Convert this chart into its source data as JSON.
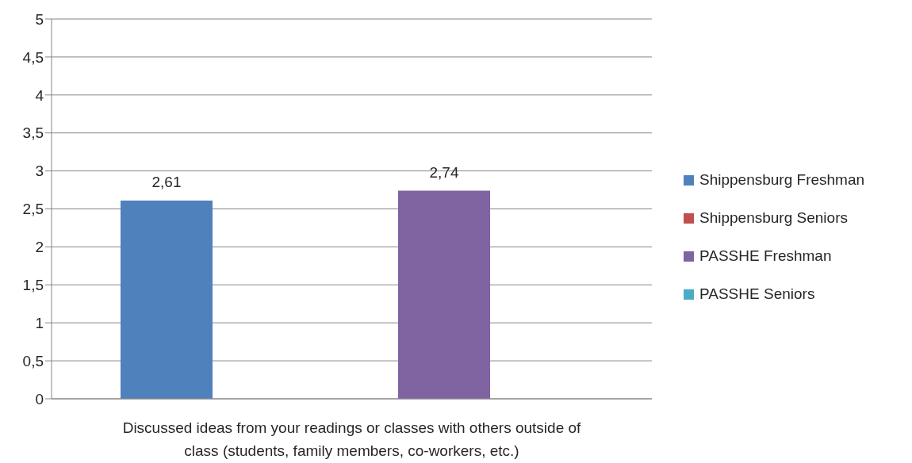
{
  "chart_data": {
    "type": "bar",
    "categories": [
      "Discussed ideas from your readings or classes with others outside of class (students, family members, co-workers, etc.)"
    ],
    "series": [
      {
        "name": "Shippensburg Freshman",
        "color": "#4f81bd",
        "values": [
          2.61
        ],
        "value_labels": [
          "2,61"
        ]
      },
      {
        "name": "Shippensburg Seniors",
        "color": "#c0504d",
        "values": [
          null
        ]
      },
      {
        "name": "PASSHE Freshman",
        "color": "#8064a2",
        "values": [
          2.74
        ],
        "value_labels": [
          "2,74"
        ]
      },
      {
        "name": "PASSHE Seniors",
        "color": "#4bacc6",
        "values": [
          null
        ]
      }
    ],
    "ylim": [
      0,
      5
    ],
    "yticks": [
      0,
      {
        "value": 0.5,
        "label": "0,5"
      },
      1,
      {
        "value": 1.5,
        "label": "1,5"
      },
      2,
      {
        "value": 2.5,
        "label": "2,5"
      },
      3,
      {
        "value": 3.5,
        "label": "3,5"
      },
      4,
      {
        "value": 4.5,
        "label": "4,5"
      },
      5
    ],
    "grid": "y",
    "legend": "right"
  }
}
